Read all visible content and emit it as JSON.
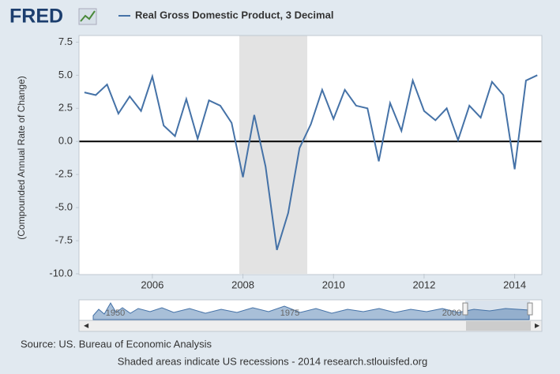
{
  "logo": "FRED",
  "chart_data": {
    "type": "line",
    "y_label": "(Compounded Annual Rate of Change)",
    "x": [
      2004.5,
      2004.75,
      2005.0,
      2005.25,
      2005.5,
      2005.75,
      2006.0,
      2006.25,
      2006.5,
      2006.75,
      2007.0,
      2007.25,
      2007.5,
      2007.75,
      2008.0,
      2008.25,
      2008.5,
      2008.75,
      2009.0,
      2009.25,
      2009.5,
      2009.75,
      2010.0,
      2010.25,
      2010.5,
      2010.75,
      2011.0,
      2011.25,
      2011.5,
      2011.75,
      2012.0,
      2012.25,
      2012.5,
      2012.75,
      2013.0,
      2013.25,
      2013.5,
      2013.75,
      2014.0,
      2014.25,
      2014.5
    ],
    "series": [
      {
        "name": "Real Gross Domestic Product, 3 Decimal",
        "color": "#4572a7",
        "values": [
          3.7,
          3.5,
          4.3,
          2.1,
          3.4,
          2.3,
          4.9,
          1.2,
          0.4,
          3.2,
          0.2,
          3.1,
          2.7,
          1.4,
          -2.7,
          2.0,
          -1.9,
          -8.2,
          -5.4,
          -0.5,
          1.3,
          3.9,
          1.7,
          3.9,
          2.7,
          2.5,
          -1.5,
          2.9,
          0.8,
          4.6,
          2.3,
          1.6,
          2.5,
          0.1,
          2.7,
          1.8,
          4.5,
          3.5,
          -2.1,
          4.6,
          5.0
        ]
      }
    ],
    "xlim": [
      2004.38,
      2014.6
    ],
    "xticks": [
      2006,
      2008,
      2010,
      2012,
      2014
    ],
    "ylim": [
      -10,
      8
    ],
    "yticks": [
      7.5,
      {
        "value": 5,
        "label": "5.0"
      },
      2.5,
      {
        "value": 0,
        "label": "0.0"
      },
      -2.5,
      {
        "value": -5,
        "label": "-5.0"
      },
      -7.5,
      {
        "value": -10,
        "label": "-10.0"
      }
    ],
    "recessions": [
      {
        "start": 2007.92,
        "end": 2009.42
      }
    ],
    "recession_color": "#e3e3e3"
  },
  "navigator": {
    "labels": [
      "1950",
      "1975",
      "2000"
    ]
  },
  "source": "Source: US. Bureau of Economic Analysis",
  "note": "Shaded areas indicate US recessions - 2014 research.stlouisfed.org"
}
